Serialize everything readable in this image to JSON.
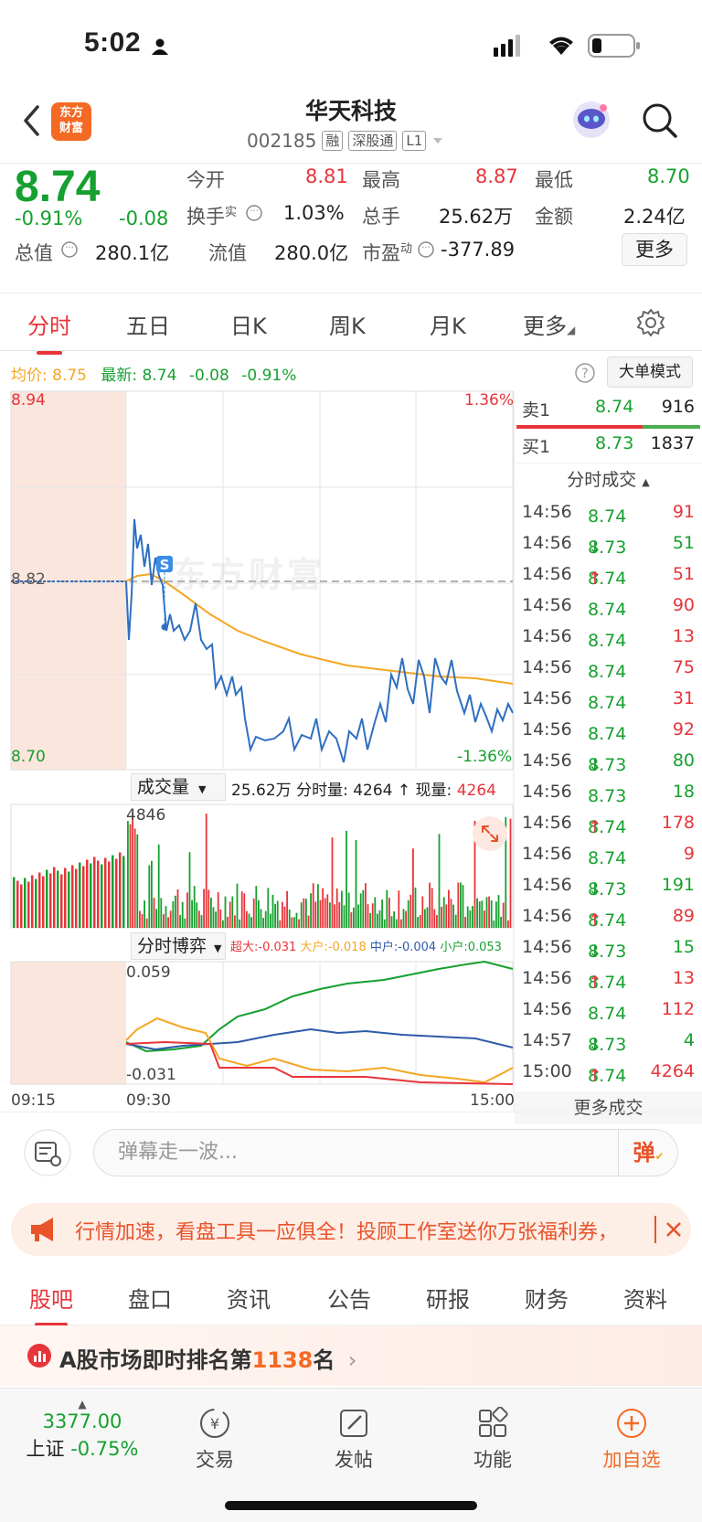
{
  "status_bar": {
    "time": "5:02"
  },
  "header": {
    "title": "华天科技",
    "code": "002185",
    "tags": [
      "融",
      "深股通",
      "L1"
    ],
    "logo_text": [
      "东方",
      "财富"
    ]
  },
  "quote": {
    "price": "8.74",
    "change_pct": "-0.91%",
    "change": "-0.08",
    "total_value_label": "总值",
    "total_value": "280.1亿",
    "open_label": "今开",
    "open": "8.81",
    "high_label": "最高",
    "high": "8.87",
    "low_label": "最低",
    "low": "8.70",
    "turnover_label": "换手",
    "turnover_sup": "实",
    "turnover": "1.03%",
    "volume_label": "总手",
    "volume": "25.62万",
    "amount_label": "金额",
    "amount": "2.24亿",
    "float_value_label": "流值",
    "float_value": "280.0亿",
    "pe_label": "市盈",
    "pe_sup": "动",
    "pe": "-377.89",
    "more_button": "更多"
  },
  "chart_tabs": [
    "分时",
    "五日",
    "日K",
    "周K",
    "月K",
    "更多"
  ],
  "summary_line": {
    "avg_label": "均价:",
    "avg_value": "8.75",
    "latest_label": "最新:",
    "latest_value": "8.74",
    "latest_change": "-0.08",
    "latest_pct": "-0.91%",
    "big_order_button": "大单模式"
  },
  "intraday_chart": {
    "y_max_label": "8.94",
    "y_min_label": "8.70",
    "ref_label": "8.82",
    "pct_max_label": "1.36%",
    "pct_min_label": "-1.36%",
    "watermark": "东方财富",
    "marker": "S"
  },
  "volume_panel": {
    "dropdown_label": "成交量",
    "total": "25.62万",
    "segment_label": "分时量:",
    "segment_value": "4264",
    "current_label": "现量:",
    "current_value": "4264",
    "axis_max_label": "4846"
  },
  "game_panel": {
    "dropdown_label": "分时博弈",
    "super_large": "超大:-0.031",
    "large": "大户:-0.018",
    "medium": "中户:-0.004",
    "small": "小户:0.053",
    "axis_max": "0.059",
    "axis_min": "-0.031"
  },
  "time_axis": [
    "09:15",
    "09:30",
    "15:00"
  ],
  "order_book": {
    "sell1_label": "卖1",
    "sell1_price": "8.74",
    "sell1_qty": "916",
    "buy1_label": "买1",
    "buy1_price": "8.73",
    "buy1_qty": "1837",
    "trades_title": "分时成交",
    "more_trades": "更多成交",
    "trades": [
      {
        "time": "14:56",
        "price": "8.74",
        "arrow": "",
        "qty": "91",
        "qty_color": "red"
      },
      {
        "time": "14:56",
        "price": "8.73",
        "arrow": "↓",
        "qty": "51",
        "qty_color": "green"
      },
      {
        "time": "14:56",
        "price": "8.74",
        "arrow": "↑",
        "qty": "51",
        "qty_color": "red"
      },
      {
        "time": "14:56",
        "price": "8.74",
        "arrow": "",
        "qty": "90",
        "qty_color": "red"
      },
      {
        "time": "14:56",
        "price": "8.74",
        "arrow": "",
        "qty": "13",
        "qty_color": "red"
      },
      {
        "time": "14:56",
        "price": "8.74",
        "arrow": "",
        "qty": "75",
        "qty_color": "red"
      },
      {
        "time": "14:56",
        "price": "8.74",
        "arrow": "",
        "qty": "31",
        "qty_color": "red"
      },
      {
        "time": "14:56",
        "price": "8.74",
        "arrow": "",
        "qty": "92",
        "qty_color": "red"
      },
      {
        "time": "14:56",
        "price": "8.73",
        "arrow": "↓",
        "qty": "80",
        "qty_color": "green"
      },
      {
        "time": "14:56",
        "price": "8.73",
        "arrow": "",
        "qty": "18",
        "qty_color": "green"
      },
      {
        "time": "14:56",
        "price": "8.74",
        "arrow": "↑",
        "qty": "178",
        "qty_color": "red"
      },
      {
        "time": "14:56",
        "price": "8.74",
        "arrow": "",
        "qty": "9",
        "qty_color": "red"
      },
      {
        "time": "14:56",
        "price": "8.73",
        "arrow": "↓",
        "qty": "191",
        "qty_color": "green"
      },
      {
        "time": "14:56",
        "price": "8.74",
        "arrow": "↑",
        "qty": "89",
        "qty_color": "red"
      },
      {
        "time": "14:56",
        "price": "8.73",
        "arrow": "↓",
        "qty": "15",
        "qty_color": "green"
      },
      {
        "time": "14:56",
        "price": "8.74",
        "arrow": "↑",
        "qty": "13",
        "qty_color": "red"
      },
      {
        "time": "14:56",
        "price": "8.74",
        "arrow": "",
        "qty": "112",
        "qty_color": "red"
      },
      {
        "time": "14:57",
        "price": "8.73",
        "arrow": "↓",
        "qty": "4",
        "qty_color": "green"
      },
      {
        "time": "15:00",
        "price": "8.74",
        "arrow": "↑",
        "qty": "4264",
        "qty_color": "red"
      }
    ]
  },
  "comment_bar": {
    "placeholder": "弹幕走一波...",
    "danmu_button": "弹"
  },
  "promo": {
    "text": "行情加速，看盘工具一应俱全！投顾工作室送你万张福利券，"
  },
  "sub_tabs": [
    "股吧",
    "盘口",
    "资讯",
    "公告",
    "研报",
    "财务",
    "资料"
  ],
  "rank_bar": {
    "prefix": "A股市场即时排名第",
    "rank": "1138",
    "suffix": "名"
  },
  "bottom_nav": {
    "index_value": "3377.00",
    "index_name": "上证",
    "index_change": "-0.75%",
    "items": [
      "交易",
      "发帖",
      "功能",
      "加自选"
    ]
  },
  "colors": {
    "up": "#e8343a",
    "down": "#16a02f",
    "avg_line": "#f5a623",
    "price_line": "#2f6fc1",
    "accent": "#f46a24"
  }
}
